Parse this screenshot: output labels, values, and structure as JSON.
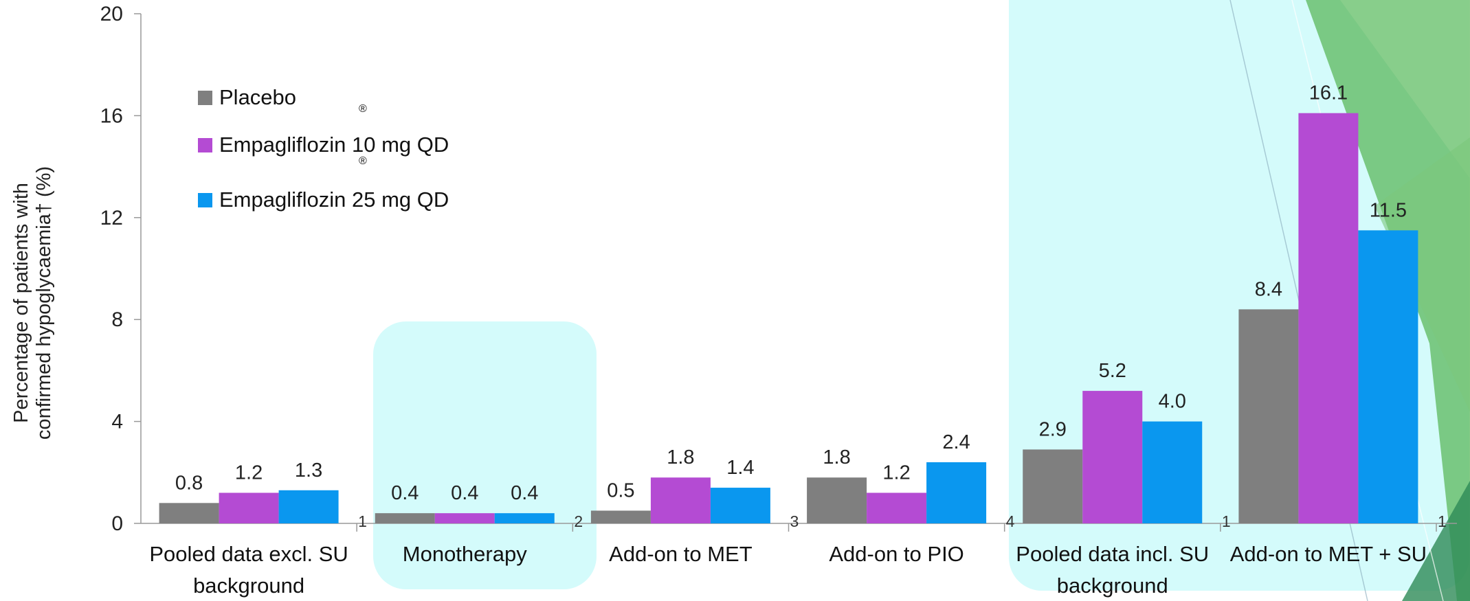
{
  "chart_data": {
    "type": "bar",
    "ylabel": "Percentage of patients with confirmed hypoglycaemia† (%)",
    "ylabel_lines": [
      "Percentage of patients with",
      "confirmed hypoglycaemia† (%)"
    ],
    "ylim": [
      0,
      20
    ],
    "yticks": [
      0,
      4,
      8,
      12,
      16,
      20
    ],
    "ytick_labels": [
      "0",
      "4",
      "8",
      "12",
      "16",
      "20"
    ],
    "grid": false,
    "legend_position": "top-left",
    "categories": [
      [
        "Pooled data excl. SU",
        "background"
      ],
      [
        "Monotherapy"
      ],
      [
        "Add-on to MET"
      ],
      [
        "Add-on to PIO"
      ],
      [
        "Pooled data incl. SU",
        "background"
      ],
      [
        "Add-on to MET + SU"
      ]
    ],
    "footnote_marks": [
      "1",
      "2",
      "3",
      "4",
      "1",
      "1"
    ],
    "series": [
      {
        "name": "Placebo",
        "color": "#7f7f7f",
        "values": [
          0.8,
          0.4,
          0.5,
          1.8,
          2.9,
          8.4
        ],
        "labels": [
          "0.8",
          "0.4",
          "0.5",
          "1.8",
          "2.9",
          "8.4"
        ]
      },
      {
        "name": "Empagliflozin 10 mg QD",
        "color": "#b44bd3",
        "values": [
          1.2,
          0.4,
          1.8,
          1.2,
          5.2,
          16.1
        ],
        "labels": [
          "1.2",
          "0.4",
          "1.8",
          "1.2",
          "5.2",
          "16.1"
        ]
      },
      {
        "name": "Empagliflozin 25 mg QD",
        "color": "#0a97ef",
        "values": [
          1.3,
          0.4,
          1.4,
          2.4,
          4.0,
          11.5
        ],
        "labels": [
          "1.3",
          "0.4",
          "1.4",
          "2.4",
          "4.0",
          "11.5"
        ]
      }
    ],
    "registered_mark": "®"
  },
  "colors": {
    "highlight": "#d4fbfb",
    "accent_green": "#5cb85c",
    "title_teal": "#0b6b7a"
  }
}
